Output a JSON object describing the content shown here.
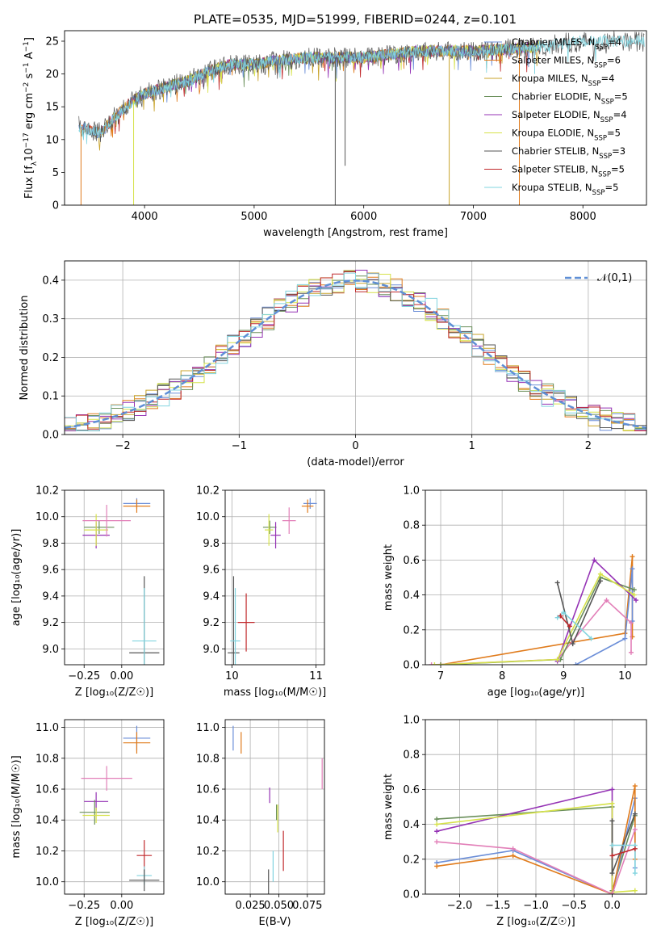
{
  "title": "PLATE=0535, MJD=51999, FIBERID=0244, z=0.101",
  "colors": {
    "chabrier_miles": "#6b8ed8",
    "salpeter_miles": "#e07b1c",
    "kroupa_miles": "#c8a32a",
    "chabrier_elodie": "#6a8f5a",
    "salpeter_elodie": "#9533b5",
    "kroupa_elodie": "#d6e24a",
    "chabrier_stelib": "#555555",
    "salpeter_stelib": "#c0292c",
    "kroupa_stelib": "#82d4df",
    "pink": "#e27fb8",
    "normal": "#5f8fd6",
    "grid": "#b0b0b0"
  },
  "chart_data": [
    {
      "type": "line",
      "panel": "spectrum",
      "xlabel": "wavelength [Angstrom, rest frame]",
      "ylabel_parts": [
        "Flux [f",
        "λ",
        "10",
        "−17",
        " erg cm",
        "−2",
        " s",
        "−1",
        " A",
        "−1",
        "]"
      ],
      "xlim": [
        3270,
        8580
      ],
      "ylim": [
        0,
        26.6
      ],
      "xticks": [
        4000,
        5000,
        6000,
        7000,
        8000
      ],
      "yticks": [
        0,
        5,
        10,
        15,
        20,
        25
      ],
      "legend_position": "top-right",
      "legend": [
        {
          "label": "Chabrier MILES, N",
          "sub": "SSP",
          "tail": "=4",
          "color_key": "chabrier_miles"
        },
        {
          "label": "Salpeter MILES, N",
          "sub": "SSP",
          "tail": "=6",
          "color_key": "salpeter_miles"
        },
        {
          "label": "Kroupa MILES, N",
          "sub": "SSP",
          "tail": "=4",
          "color_key": "kroupa_miles"
        },
        {
          "label": "Chabrier ELODIE, N",
          "sub": "SSP",
          "tail": "=5",
          "color_key": "chabrier_elodie"
        },
        {
          "label": "Salpeter ELODIE, N",
          "sub": "SSP",
          "tail": "=4",
          "color_key": "salpeter_elodie"
        },
        {
          "label": "Kroupa ELODIE, N",
          "sub": "SSP",
          "tail": "=5",
          "color_key": "kroupa_elodie"
        },
        {
          "label": "Chabrier STELIB, N",
          "sub": "SSP",
          "tail": "=3",
          "color_key": "chabrier_stelib"
        },
        {
          "label": "Salpeter STELIB, N",
          "sub": "SSP",
          "tail": "=5",
          "color_key": "salpeter_stelib"
        },
        {
          "label": "Kroupa STELIB, N",
          "sub": "SSP",
          "tail": "=5",
          "color_key": "kroupa_stelib"
        }
      ],
      "spectrum_trend": [
        [
          3400,
          12
        ],
        [
          3600,
          11
        ],
        [
          3700,
          13
        ],
        [
          3900,
          16
        ],
        [
          4000,
          17
        ],
        [
          4200,
          18
        ],
        [
          4400,
          19
        ],
        [
          4600,
          20.5
        ],
        [
          4800,
          21.5
        ],
        [
          5000,
          21.5
        ],
        [
          5200,
          22
        ],
        [
          5500,
          22.5
        ],
        [
          6000,
          22.5
        ],
        [
          6500,
          23.5
        ],
        [
          7000,
          23.5
        ],
        [
          7500,
          24
        ],
        [
          8000,
          25
        ],
        [
          8500,
          25
        ]
      ],
      "absorption_spikes": [
        [
          3420,
          "salpeter_miles",
          0
        ],
        [
          3900,
          "kroupa_elodie",
          0
        ],
        [
          5740,
          "chabrier_stelib",
          0
        ],
        [
          5830,
          "chabrier_stelib",
          6
        ],
        [
          6780,
          "kroupa_miles",
          0
        ],
        [
          7420,
          "salpeter_miles",
          0
        ],
        [
          7560,
          "kroupa_stelib",
          20
        ]
      ]
    },
    {
      "type": "step",
      "panel": "residual_histogram",
      "xlabel": "(data-model)/error",
      "ylabel": "Normed distribution",
      "xlim": [
        -2.5,
        2.5
      ],
      "ylim": [
        0,
        0.45
      ],
      "xticks": [
        -2,
        -1,
        0,
        1,
        2
      ],
      "yticks": [
        0.0,
        0.1,
        0.2,
        0.3,
        0.4
      ],
      "legend": {
        "text": "𝒩(0,1)",
        "color_key": "normal"
      },
      "series_colors": [
        "chabrier_miles",
        "salpeter_miles",
        "kroupa_miles",
        "chabrier_elodie",
        "salpeter_elodie",
        "kroupa_elodie",
        "chabrier_stelib",
        "salpeter_stelib",
        "kroupa_stelib"
      ]
    },
    {
      "type": "scatter",
      "panel": "age_vs_Z",
      "xlabel": "Z [log₁₀(Z/Z☉)]",
      "ylabel": "age  [log₁₀(age/yr)]",
      "xlim": [
        -0.38,
        0.28
      ],
      "ylim": [
        8.88,
        10.2
      ],
      "xticks": [
        -0.25,
        0.0
      ],
      "yticks": [
        9.0,
        9.2,
        9.4,
        9.6,
        9.8,
        10.0,
        10.2
      ],
      "points": [
        {
          "x": 0.1,
          "y": 10.1,
          "xerr": 0.09,
          "yerr": 0.04,
          "c": "chabrier_miles"
        },
        {
          "x": 0.1,
          "y": 10.08,
          "xerr": 0.09,
          "yerr": 0.05,
          "c": "salpeter_miles"
        },
        {
          "x": -0.15,
          "y": 9.92,
          "xerr": 0.1,
          "yerr": 0.05,
          "c": "chabrier_elodie"
        },
        {
          "x": -0.17,
          "y": 9.86,
          "xerr": 0.09,
          "yerr": 0.1,
          "c": "salpeter_elodie"
        },
        {
          "x": -0.17,
          "y": 9.9,
          "xerr": 0.08,
          "yerr": 0.12,
          "c": "kroupa_elodie"
        },
        {
          "x": -0.1,
          "y": 9.97,
          "xerr": 0.16,
          "yerr": 0.12,
          "c": "pink"
        },
        {
          "x": 0.15,
          "y": 8.97,
          "xerr": 0.1,
          "yerr": 0.58,
          "c": "chabrier_stelib"
        },
        {
          "x": 0.15,
          "y": 9.06,
          "xerr": 0.08,
          "yerr": 0.4,
          "c": "kroupa_stelib"
        }
      ]
    },
    {
      "type": "scatter",
      "panel": "age_vs_mass",
      "xlabel": "mass [log₁₀(M/M☉)]",
      "ylabel": "",
      "xlim": [
        9.92,
        11.1
      ],
      "ylim": [
        8.88,
        10.2
      ],
      "xticks": [
        10,
        11
      ],
      "yticks": [
        9.0,
        9.2,
        9.4,
        9.6,
        9.8,
        10.0,
        10.2
      ],
      "points": [
        {
          "x": 10.93,
          "y": 10.1,
          "xerr": 0.08,
          "yerr": 0.04,
          "c": "chabrier_miles"
        },
        {
          "x": 10.9,
          "y": 10.08,
          "xerr": 0.07,
          "yerr": 0.05,
          "c": "salpeter_miles"
        },
        {
          "x": 10.45,
          "y": 9.92,
          "xerr": 0.08,
          "yerr": 0.05,
          "c": "chabrier_elodie"
        },
        {
          "x": 10.52,
          "y": 9.86,
          "xerr": 0.06,
          "yerr": 0.1,
          "c": "salpeter_elodie"
        },
        {
          "x": 10.44,
          "y": 9.9,
          "xerr": 0.05,
          "yerr": 0.12,
          "c": "kroupa_elodie"
        },
        {
          "x": 10.68,
          "y": 9.97,
          "xerr": 0.08,
          "yerr": 0.1,
          "c": "pink"
        },
        {
          "x": 10.02,
          "y": 8.97,
          "xerr": 0.07,
          "yerr": 0.58,
          "c": "chabrier_stelib"
        },
        {
          "x": 10.17,
          "y": 9.2,
          "xerr": 0.1,
          "yerr": 0.22,
          "c": "salpeter_stelib"
        },
        {
          "x": 10.04,
          "y": 9.06,
          "xerr": 0.06,
          "yerr": 0.4,
          "c": "kroupa_stelib"
        }
      ]
    },
    {
      "type": "line",
      "panel": "mass_weight_vs_age",
      "xlabel": "age  [log₁₀(age/yr)]",
      "ylabel": "mass weight",
      "xlim": [
        6.75,
        10.35
      ],
      "ylim": [
        0,
        1.0
      ],
      "xticks": [
        7,
        8,
        9,
        10
      ],
      "yticks": [
        0.0,
        0.2,
        0.4,
        0.6,
        0.8,
        1.0
      ],
      "series": [
        {
          "c": "salpeter_miles",
          "points": [
            [
              7.0,
              0.0
            ],
            [
              10.0,
              0.18
            ],
            [
              10.12,
              0.62
            ],
            [
              10.12,
              0.16
            ]
          ]
        },
        {
          "c": "chabrier_miles",
          "points": [
            [
              9.2,
              0.0
            ],
            [
              10.0,
              0.15
            ],
            [
              10.12,
              0.55
            ],
            [
              10.12,
              0.25
            ]
          ]
        },
        {
          "c": "pink",
          "points": [
            [
              6.85,
              0.0
            ],
            [
              8.9,
              0.03
            ],
            [
              9.7,
              0.37
            ],
            [
              10.1,
              0.24
            ],
            [
              10.1,
              0.07
            ]
          ]
        },
        {
          "c": "chabrier_elodie",
          "points": [
            [
              7.0,
              0.0
            ],
            [
              8.95,
              0.03
            ],
            [
              9.6,
              0.5
            ],
            [
              10.15,
              0.43
            ]
          ]
        },
        {
          "c": "salpeter_elodie",
          "points": [
            [
              8.9,
              0.02
            ],
            [
              9.5,
              0.6
            ],
            [
              10.18,
              0.37
            ]
          ]
        },
        {
          "c": "kroupa_elodie",
          "points": [
            [
              6.9,
              0.0
            ],
            [
              8.9,
              0.03
            ],
            [
              9.6,
              0.52
            ],
            [
              10.15,
              0.4
            ]
          ]
        },
        {
          "c": "chabrier_stelib",
          "points": [
            [
              8.9,
              0.47
            ],
            [
              9.15,
              0.12
            ],
            [
              9.6,
              0.48
            ]
          ]
        },
        {
          "c": "kroupa_stelib",
          "points": [
            [
              8.9,
              0.27
            ],
            [
              9.0,
              0.3
            ],
            [
              9.45,
              0.15
            ]
          ]
        },
        {
          "c": "salpeter_stelib",
          "points": [
            [
              8.95,
              0.28
            ],
            [
              9.1,
              0.22
            ]
          ]
        }
      ]
    },
    {
      "type": "scatter",
      "panel": "mass_vs_Z",
      "xlabel": "Z [log₁₀(Z/Z☉)]",
      "ylabel": "mass [log₁₀(M/M☉)]",
      "xlim": [
        -0.38,
        0.28
      ],
      "ylim": [
        9.92,
        11.05
      ],
      "xticks": [
        -0.25,
        0.0
      ],
      "yticks": [
        10.0,
        10.2,
        10.4,
        10.6,
        10.8,
        11.0
      ],
      "points": [
        {
          "x": 0.1,
          "y": 10.93,
          "xerr": 0.09,
          "yerr": 0.08,
          "c": "chabrier_miles"
        },
        {
          "x": 0.1,
          "y": 10.9,
          "xerr": 0.09,
          "yerr": 0.07,
          "c": "salpeter_miles"
        },
        {
          "x": -0.1,
          "y": 10.67,
          "xerr": 0.17,
          "yerr": 0.08,
          "c": "pink"
        },
        {
          "x": -0.17,
          "y": 10.52,
          "xerr": 0.08,
          "yerr": 0.06,
          "c": "salpeter_elodie"
        },
        {
          "x": -0.18,
          "y": 10.45,
          "xerr": 0.1,
          "yerr": 0.08,
          "c": "chabrier_elodie"
        },
        {
          "x": -0.17,
          "y": 10.43,
          "xerr": 0.09,
          "yerr": 0.05,
          "c": "kroupa_elodie"
        },
        {
          "x": 0.15,
          "y": 10.17,
          "xerr": 0.05,
          "yerr": 0.1,
          "c": "salpeter_stelib"
        },
        {
          "x": 0.15,
          "y": 10.04,
          "xerr": 0.05,
          "yerr": 0.06,
          "c": "kroupa_stelib"
        },
        {
          "x": 0.15,
          "y": 10.01,
          "xerr": 0.1,
          "yerr": 0.07,
          "c": "chabrier_stelib"
        }
      ]
    },
    {
      "type": "scatter",
      "panel": "mass_vs_ebv",
      "xlabel": "E(B-V)",
      "ylabel": "",
      "xlim": [
        0.003,
        0.09
      ],
      "ylim": [
        9.92,
        11.05
      ],
      "xticks": [
        0.025,
        0.05,
        0.075
      ],
      "xtick_labels": [
        "0.025",
        "0.050",
        "0.075"
      ],
      "yticks": [
        10.0,
        10.2,
        10.4,
        10.6,
        10.8,
        11.0
      ],
      "points": [
        {
          "x": 0.01,
          "y": 10.93,
          "xerr": 0,
          "yerr": 0.08,
          "c": "chabrier_miles"
        },
        {
          "x": 0.017,
          "y": 10.9,
          "xerr": 0,
          "yerr": 0.07,
          "c": "salpeter_miles"
        },
        {
          "x": 0.088,
          "y": 10.7,
          "xerr": 0,
          "yerr": 0.1,
          "c": "pink"
        },
        {
          "x": 0.042,
          "y": 10.56,
          "xerr": 0,
          "yerr": 0.05,
          "c": "salpeter_elodie"
        },
        {
          "x": 0.048,
          "y": 10.45,
          "xerr": 0,
          "yerr": 0.05,
          "c": "chabrier_elodie"
        },
        {
          "x": 0.049,
          "y": 10.41,
          "xerr": 0,
          "yerr": 0.09,
          "c": "kroupa_elodie"
        },
        {
          "x": 0.054,
          "y": 10.2,
          "xerr": 0,
          "yerr": 0.13,
          "c": "salpeter_stelib"
        },
        {
          "x": 0.045,
          "y": 10.1,
          "xerr": 0,
          "yerr": 0.1,
          "c": "kroupa_stelib"
        },
        {
          "x": 0.041,
          "y": 10.0,
          "xerr": 0,
          "yerr": 0.08,
          "c": "chabrier_stelib"
        }
      ]
    },
    {
      "type": "line",
      "panel": "mass_weight_vs_Z",
      "xlabel": "Z [log₁₀(Z/Z☉)]",
      "ylabel": "mass weight",
      "xlim": [
        -2.45,
        0.45
      ],
      "ylim": [
        0,
        1.0
      ],
      "xticks": [
        -2.0,
        -1.5,
        -1.0,
        -0.5,
        0.0
      ],
      "yticks": [
        0.0,
        0.2,
        0.4,
        0.6,
        0.8,
        1.0
      ],
      "series": [
        {
          "c": "chabrier_elodie",
          "points": [
            [
              -2.3,
              0.43
            ],
            [
              0.0,
              0.5
            ],
            [
              0.0,
              0.02
            ],
            [
              0.3,
              0.45
            ]
          ]
        },
        {
          "c": "salpeter_elodie",
          "points": [
            [
              -2.3,
              0.36
            ],
            [
              0.0,
              0.6
            ],
            [
              0.0,
              0.0
            ]
          ]
        },
        {
          "c": "kroupa_elodie",
          "points": [
            [
              -2.3,
              0.4
            ],
            [
              0.0,
              0.52
            ],
            [
              0.0,
              0.01
            ],
            [
              0.3,
              0.02
            ]
          ]
        },
        {
          "c": "chabrier_miles",
          "points": [
            [
              -2.3,
              0.18
            ],
            [
              -1.3,
              0.25
            ],
            [
              0.0,
              0.0
            ],
            [
              0.3,
              0.55
            ],
            [
              0.3,
              0.15
            ]
          ]
        },
        {
          "c": "salpeter_miles",
          "points": [
            [
              -2.3,
              0.16
            ],
            [
              -1.3,
              0.22
            ],
            [
              0.0,
              0.0
            ],
            [
              0.3,
              0.62
            ],
            [
              0.3,
              0.2
            ]
          ]
        },
        {
          "c": "pink",
          "points": [
            [
              -2.3,
              0.3
            ],
            [
              -1.3,
              0.26
            ],
            [
              0.0,
              0.0
            ],
            [
              0.3,
              0.37
            ]
          ]
        },
        {
          "c": "chabrier_stelib",
          "points": [
            [
              0.0,
              0.42
            ],
            [
              0.0,
              0.12
            ],
            [
              0.3,
              0.46
            ]
          ]
        },
        {
          "c": "kroupa_stelib",
          "points": [
            [
              0.0,
              0.28
            ],
            [
              0.3,
              0.28
            ],
            [
              0.3,
              0.12
            ]
          ]
        },
        {
          "c": "salpeter_stelib",
          "points": [
            [
              0.0,
              0.22
            ],
            [
              0.3,
              0.26
            ]
          ]
        }
      ]
    }
  ]
}
